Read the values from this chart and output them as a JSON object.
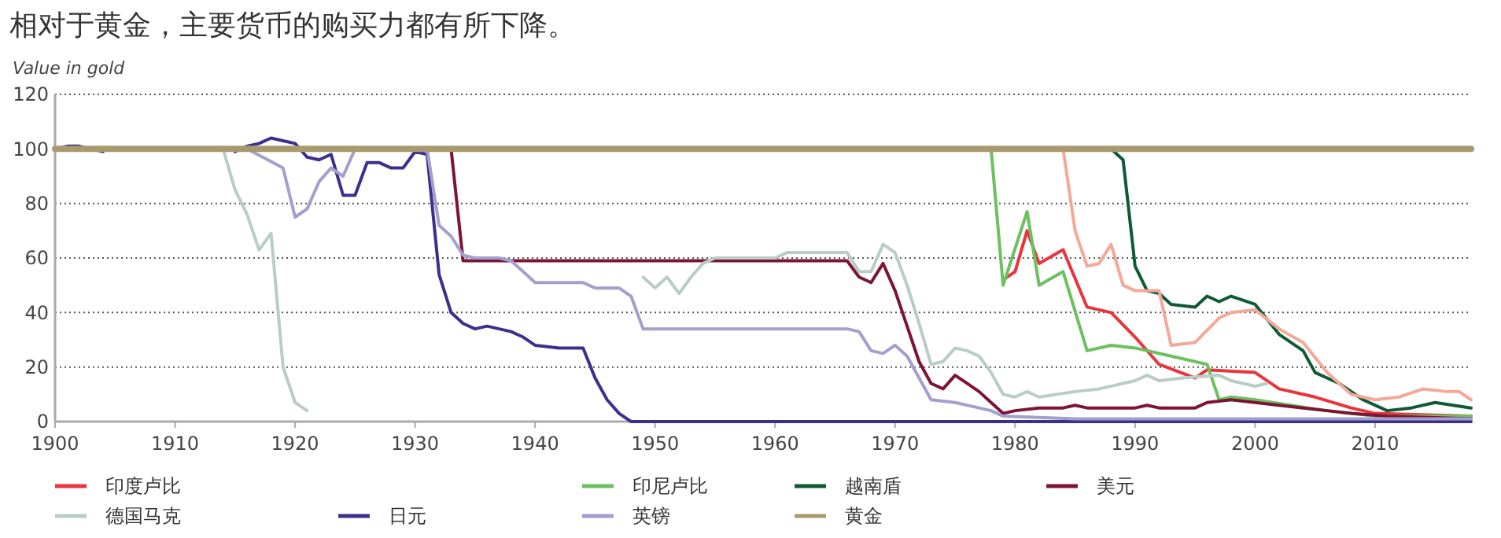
{
  "chart_data": {
    "type": "line",
    "title": "相对于黄金，主要货币的购买力都有所下降。",
    "ylabel": "Value in gold",
    "xlim": [
      1900,
      2018
    ],
    "xticks": [
      1900,
      1910,
      1920,
      1930,
      1940,
      1950,
      1960,
      1970,
      1980,
      1990,
      2000,
      2010
    ],
    "ylim": [
      0,
      120
    ],
    "yticks": [
      0,
      20,
      40,
      60,
      80,
      100,
      120
    ],
    "grid": "y",
    "legend": "bottom",
    "line_style": "solid",
    "marker": "none",
    "series": [
      {
        "name": "印度卢比",
        "color": "#e8343a",
        "x": [
          1979,
          1980,
          1981,
          1982,
          1984,
          1986,
          1988,
          1990,
          1992,
          1995,
          1996,
          2000,
          2002,
          2005,
          2008,
          2010,
          2018
        ],
        "values": [
          52,
          55,
          70,
          58,
          63,
          42,
          40,
          31,
          21,
          16,
          19,
          18,
          12,
          9,
          5,
          3,
          2
        ]
      },
      {
        "name": "印尼卢比",
        "color": "#6cc060",
        "x": [
          1978,
          1979,
          1981,
          1982,
          1984,
          1986,
          1988,
          1990,
          1993,
          1996,
          1997,
          1998,
          2000,
          2003,
          2006,
          2010,
          2018
        ],
        "values": [
          100,
          50,
          77,
          50,
          55,
          26,
          28,
          27,
          24,
          21,
          8,
          9,
          8,
          6,
          4,
          2,
          2
        ]
      },
      {
        "name": "越南盾",
        "color": "#0f5a34",
        "x": [
          1988,
          1989,
          1990,
          1991,
          1992,
          1993,
          1995,
          1996,
          1997,
          1998,
          2000,
          2002,
          2004,
          2005,
          2007,
          2009,
          2011,
          2013,
          2015,
          2018
        ],
        "values": [
          100,
          96,
          57,
          48,
          47,
          43,
          42,
          46,
          44,
          46,
          43,
          32,
          26,
          18,
          14,
          8,
          4,
          5,
          7,
          5
        ]
      },
      {
        "name": "美元",
        "color": "#7c1436",
        "x": [
          1933,
          1934,
          1966,
          1967,
          1968,
          1969,
          1970,
          1971,
          1972,
          1973,
          1974,
          1975,
          1976,
          1977,
          1978,
          1979,
          1980,
          1982,
          1984,
          1985,
          1986,
          1988,
          1990,
          1991,
          1992,
          1995,
          1996,
          1998,
          2000,
          2002,
          2004,
          2006,
          2008,
          2011,
          2018
        ],
        "values": [
          100,
          59,
          59,
          53,
          51,
          58,
          48,
          35,
          22,
          14,
          12,
          17,
          14,
          11,
          7,
          3,
          4,
          5,
          5,
          6,
          5,
          5,
          5,
          6,
          5,
          5,
          7,
          8,
          7,
          6,
          5,
          4,
          3,
          2,
          1
        ]
      },
      {
        "name": "德国马克",
        "color": "#b8cdc4",
        "x": [
          1914,
          1915,
          1916,
          1917,
          1918,
          1919,
          1920,
          1921,
          1935,
          1949,
          1950,
          1951,
          1952,
          1953,
          1954,
          1955,
          1960,
          1961,
          1966,
          1967,
          1968,
          1969,
          1970,
          1971,
          1972,
          1973,
          1974,
          1975,
          1976,
          1977,
          1978,
          1979,
          1980,
          1981,
          1982,
          1985,
          1987,
          1989,
          1990,
          1991,
          1992,
          1994,
          1997,
          1998,
          2000,
          2001
        ],
        "values": [
          100,
          85,
          76,
          63,
          69,
          20,
          7,
          4,
          null,
          53,
          49,
          53,
          47,
          53,
          58,
          60,
          60,
          62,
          62,
          55,
          55,
          65,
          62,
          50,
          36,
          21,
          22,
          27,
          26,
          24,
          18,
          10,
          9,
          11,
          9,
          11,
          12,
          14,
          15,
          17,
          15,
          16,
          17,
          15,
          13,
          14
        ]
      },
      {
        "name": "日元",
        "color": "#3d2f8c",
        "x": [
          1900,
          1901,
          1902,
          1904,
          1905,
          1914,
          1915,
          1916,
          1917,
          1918,
          1919,
          1920,
          1921,
          1922,
          1923,
          1924,
          1925,
          1926,
          1927,
          1928,
          1929,
          1930,
          1931,
          1932,
          1933,
          1934,
          1935,
          1936,
          1937,
          1938,
          1939,
          1940,
          1942,
          1944,
          1945,
          1946,
          1947,
          1948,
          2018
        ],
        "values": [
          100,
          101,
          101,
          99,
          null,
          null,
          99,
          101,
          102,
          104,
          103,
          102,
          97,
          96,
          98,
          83,
          83,
          95,
          95,
          93,
          93,
          99,
          98,
          54,
          40,
          36,
          34,
          35,
          34,
          33,
          31,
          28,
          27,
          27,
          16,
          8,
          3,
          0,
          0
        ]
      },
      {
        "name": "英镑",
        "color": "#a39fcf",
        "x": [
          1916,
          1919,
          1920,
          1921,
          1922,
          1923,
          1924,
          1925,
          1931,
          1932,
          1933,
          1934,
          1935,
          1937,
          1938,
          1939,
          1940,
          1944,
          1945,
          1947,
          1948,
          1949,
          1966,
          1967,
          1968,
          1969,
          1970,
          1971,
          1972,
          1973,
          1975,
          1977,
          1978,
          1979,
          1985,
          2018
        ],
        "values": [
          100,
          93,
          75,
          78,
          88,
          93,
          90,
          100,
          100,
          72,
          68,
          61,
          60,
          60,
          59,
          55,
          51,
          51,
          49,
          49,
          46,
          34,
          34,
          33,
          26,
          25,
          28,
          24,
          16,
          8,
          7,
          5,
          4,
          2,
          1,
          1
        ]
      },
      {
        "color": "#f4a898",
        "x": [
          1984,
          1985,
          1986,
          1987,
          1988,
          1989,
          1990,
          1992,
          1993,
          1995,
          1997,
          1998,
          2000,
          2002,
          2004,
          2006,
          2008,
          2010,
          2012,
          2014,
          2016,
          2017,
          2018
        ],
        "values": [
          100,
          70,
          57,
          58,
          65,
          50,
          48,
          48,
          28,
          29,
          38,
          40,
          41,
          34,
          29,
          18,
          10,
          8,
          9,
          12,
          11,
          11,
          8
        ]
      },
      {
        "name": "黄金",
        "color": "#a89a6e",
        "x": [
          1900,
          2018
        ],
        "values": [
          100,
          100
        ]
      }
    ]
  }
}
